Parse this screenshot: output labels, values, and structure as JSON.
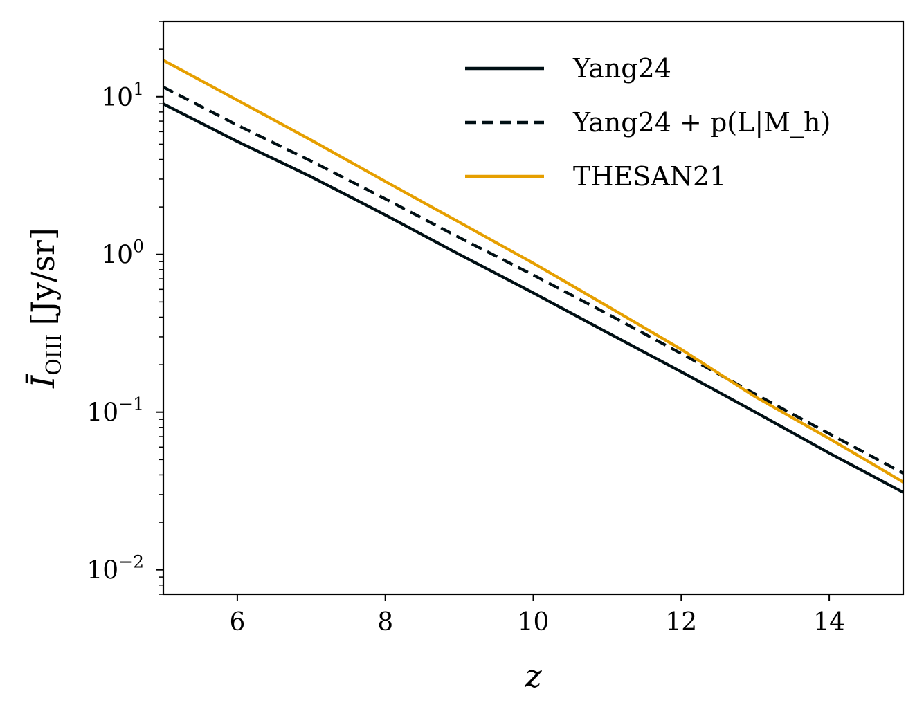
{
  "chart_data": {
    "type": "line",
    "title": "",
    "xlabel": "z",
    "ylabel": {
      "symbol": "Ī",
      "subscript": "OIII",
      "unit": "[Jy/sr]"
    },
    "xlim": [
      5,
      15
    ],
    "ylim": [
      0.007,
      30
    ],
    "yscale": "log",
    "x_ticks": [
      {
        "value": 6,
        "label": "6"
      },
      {
        "value": 8,
        "label": "8"
      },
      {
        "value": 10,
        "label": "10"
      },
      {
        "value": 12,
        "label": "12"
      },
      {
        "value": 14,
        "label": "14"
      }
    ],
    "y_ticks": [
      {
        "value": 0.01,
        "base": "10",
        "exp": "−2"
      },
      {
        "value": 0.1,
        "base": "10",
        "exp": "−1"
      },
      {
        "value": 1,
        "base": "10",
        "exp": "0"
      },
      {
        "value": 10,
        "base": "10",
        "exp": "1"
      }
    ],
    "legend_position": "top-right",
    "series": [
      {
        "name": "Yang24",
        "legend_label": "Yang24",
        "color": "#000f14",
        "dash": "solid",
        "x": [
          5,
          6,
          7,
          8,
          9,
          10,
          11,
          12,
          13,
          14,
          15
        ],
        "y": [
          9.0,
          5.2,
          3.1,
          1.78,
          1.0,
          0.57,
          0.32,
          0.18,
          0.1,
          0.055,
          0.031
        ]
      },
      {
        "name": "Yang24 + p(L|M_h)",
        "legend_label": "Yang24 + p(L|M_h)",
        "color": "#000f14",
        "dash": "dashed",
        "x": [
          5,
          6,
          7,
          8,
          9,
          10,
          11,
          12,
          13,
          14,
          15
        ],
        "y": [
          11.5,
          6.6,
          3.9,
          2.25,
          1.28,
          0.74,
          0.42,
          0.235,
          0.13,
          0.073,
          0.041
        ]
      },
      {
        "name": "THESAN21",
        "legend_label": "THESAN21",
        "color": "#e69f00",
        "dash": "solid",
        "x": [
          5,
          6,
          7,
          8,
          9,
          10,
          11,
          12,
          13,
          14,
          15
        ],
        "y": [
          17.0,
          9.5,
          5.3,
          2.9,
          1.6,
          0.88,
          0.47,
          0.25,
          0.125,
          0.068,
          0.036
        ]
      }
    ]
  }
}
